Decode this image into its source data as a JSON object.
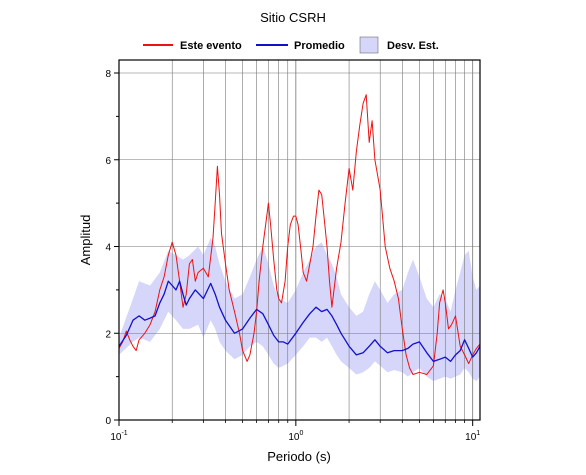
{
  "chart_data": {
    "type": "line",
    "title": "Sitio CSRH",
    "xlabel": "Periodo (s)",
    "ylabel": "Amplitud",
    "x_scale": "log",
    "xlim": [
      0.1,
      11
    ],
    "ylim": [
      0,
      8.3
    ],
    "x_ticks": [
      {
        "value": 0.1,
        "base": "10",
        "exp": "-1"
      },
      {
        "value": 1,
        "base": "10",
        "exp": "0"
      },
      {
        "value": 10,
        "base": "10",
        "exp": "1"
      }
    ],
    "y_ticks": [
      0,
      2,
      4,
      6,
      8
    ],
    "grid": true,
    "legend_position": "top",
    "series": [
      {
        "name": "Este evento",
        "color": "#ee1111",
        "points": [
          [
            0.1,
            1.65
          ],
          [
            0.105,
            1.8
          ],
          [
            0.11,
            2.05
          ],
          [
            0.115,
            1.85
          ],
          [
            0.12,
            1.7
          ],
          [
            0.125,
            1.6
          ],
          [
            0.13,
            1.85
          ],
          [
            0.14,
            2.0
          ],
          [
            0.15,
            2.2
          ],
          [
            0.16,
            2.5
          ],
          [
            0.17,
            3.0
          ],
          [
            0.18,
            3.3
          ],
          [
            0.19,
            3.8
          ],
          [
            0.2,
            4.1
          ],
          [
            0.21,
            3.8
          ],
          [
            0.22,
            3.2
          ],
          [
            0.23,
            2.6
          ],
          [
            0.24,
            2.9
          ],
          [
            0.25,
            3.6
          ],
          [
            0.26,
            3.7
          ],
          [
            0.27,
            3.2
          ],
          [
            0.28,
            3.4
          ],
          [
            0.3,
            3.5
          ],
          [
            0.32,
            3.3
          ],
          [
            0.34,
            4.2
          ],
          [
            0.35,
            5.0
          ],
          [
            0.36,
            5.85
          ],
          [
            0.37,
            5.2
          ],
          [
            0.38,
            4.3
          ],
          [
            0.4,
            3.6
          ],
          [
            0.42,
            3.0
          ],
          [
            0.45,
            2.5
          ],
          [
            0.48,
            2.0
          ],
          [
            0.5,
            1.6
          ],
          [
            0.53,
            1.35
          ],
          [
            0.55,
            1.5
          ],
          [
            0.58,
            2.0
          ],
          [
            0.6,
            2.5
          ],
          [
            0.62,
            3.2
          ],
          [
            0.65,
            4.0
          ],
          [
            0.68,
            4.6
          ],
          [
            0.7,
            5.0
          ],
          [
            0.72,
            4.5
          ],
          [
            0.75,
            3.7
          ],
          [
            0.78,
            3.0
          ],
          [
            0.8,
            2.8
          ],
          [
            0.83,
            2.7
          ],
          [
            0.87,
            3.2
          ],
          [
            0.9,
            4.0
          ],
          [
            0.93,
            4.5
          ],
          [
            0.97,
            4.7
          ],
          [
            1.0,
            4.7
          ],
          [
            1.03,
            4.5
          ],
          [
            1.07,
            3.9
          ],
          [
            1.1,
            3.4
          ],
          [
            1.15,
            3.2
          ],
          [
            1.2,
            3.6
          ],
          [
            1.25,
            4.0
          ],
          [
            1.3,
            4.7
          ],
          [
            1.35,
            5.3
          ],
          [
            1.4,
            5.2
          ],
          [
            1.45,
            4.6
          ],
          [
            1.5,
            4.0
          ],
          [
            1.55,
            3.2
          ],
          [
            1.6,
            2.6
          ],
          [
            1.7,
            3.5
          ],
          [
            1.8,
            4.1
          ],
          [
            1.9,
            5.0
          ],
          [
            2.0,
            5.8
          ],
          [
            2.1,
            5.3
          ],
          [
            2.2,
            6.2
          ],
          [
            2.3,
            6.8
          ],
          [
            2.4,
            7.3
          ],
          [
            2.5,
            7.5
          ],
          [
            2.6,
            6.4
          ],
          [
            2.7,
            6.9
          ],
          [
            2.8,
            6.0
          ],
          [
            3.0,
            5.3
          ],
          [
            3.2,
            4.0
          ],
          [
            3.4,
            3.5
          ],
          [
            3.6,
            3.2
          ],
          [
            3.8,
            2.8
          ],
          [
            4.0,
            2.1
          ],
          [
            4.2,
            1.5
          ],
          [
            4.4,
            1.2
          ],
          [
            4.6,
            1.05
          ],
          [
            5.0,
            1.1
          ],
          [
            5.5,
            1.05
          ],
          [
            6.0,
            1.25
          ],
          [
            6.3,
            2.0
          ],
          [
            6.5,
            2.7
          ],
          [
            6.8,
            3.0
          ],
          [
            7.0,
            2.7
          ],
          [
            7.3,
            2.1
          ],
          [
            7.6,
            2.2
          ],
          [
            8.0,
            2.4
          ],
          [
            8.5,
            1.7
          ],
          [
            9.0,
            1.5
          ],
          [
            9.5,
            1.3
          ],
          [
            10.0,
            1.5
          ],
          [
            10.5,
            1.65
          ],
          [
            11.0,
            1.75
          ]
        ]
      },
      {
        "name": "Promedio",
        "color": "#1111cc",
        "points": [
          [
            0.1,
            1.7
          ],
          [
            0.11,
            1.95
          ],
          [
            0.12,
            2.3
          ],
          [
            0.13,
            2.4
          ],
          [
            0.14,
            2.3
          ],
          [
            0.15,
            2.35
          ],
          [
            0.16,
            2.4
          ],
          [
            0.17,
            2.7
          ],
          [
            0.18,
            2.9
          ],
          [
            0.19,
            3.2
          ],
          [
            0.2,
            3.1
          ],
          [
            0.21,
            3.0
          ],
          [
            0.22,
            3.2
          ],
          [
            0.23,
            2.9
          ],
          [
            0.24,
            2.65
          ],
          [
            0.25,
            2.8
          ],
          [
            0.27,
            3.0
          ],
          [
            0.3,
            2.8
          ],
          [
            0.33,
            3.15
          ],
          [
            0.35,
            2.9
          ],
          [
            0.37,
            2.6
          ],
          [
            0.4,
            2.3
          ],
          [
            0.45,
            2.0
          ],
          [
            0.5,
            2.1
          ],
          [
            0.55,
            2.35
          ],
          [
            0.6,
            2.55
          ],
          [
            0.65,
            2.45
          ],
          [
            0.7,
            2.2
          ],
          [
            0.75,
            1.95
          ],
          [
            0.8,
            1.8
          ],
          [
            0.85,
            1.8
          ],
          [
            0.9,
            1.75
          ],
          [
            1.0,
            2.0
          ],
          [
            1.1,
            2.25
          ],
          [
            1.2,
            2.45
          ],
          [
            1.3,
            2.6
          ],
          [
            1.4,
            2.5
          ],
          [
            1.5,
            2.55
          ],
          [
            1.6,
            2.4
          ],
          [
            1.7,
            2.2
          ],
          [
            1.8,
            2.0
          ],
          [
            1.9,
            1.85
          ],
          [
            2.0,
            1.7
          ],
          [
            2.2,
            1.5
          ],
          [
            2.4,
            1.55
          ],
          [
            2.6,
            1.7
          ],
          [
            2.8,
            1.85
          ],
          [
            3.0,
            1.7
          ],
          [
            3.3,
            1.55
          ],
          [
            3.6,
            1.6
          ],
          [
            4.0,
            1.6
          ],
          [
            4.3,
            1.65
          ],
          [
            4.6,
            1.75
          ],
          [
            5.0,
            1.8
          ],
          [
            5.5,
            1.55
          ],
          [
            6.0,
            1.35
          ],
          [
            6.5,
            1.4
          ],
          [
            7.0,
            1.45
          ],
          [
            7.5,
            1.35
          ],
          [
            8.0,
            1.5
          ],
          [
            8.5,
            1.6
          ],
          [
            9.0,
            1.85
          ],
          [
            9.5,
            1.65
          ],
          [
            10.0,
            1.45
          ],
          [
            10.5,
            1.55
          ],
          [
            11.0,
            1.7
          ]
        ]
      },
      {
        "name": "Desv. Est.",
        "color": "#aaaaff",
        "band": [
          [
            0.1,
            1.5,
            1.9
          ],
          [
            0.12,
            1.8,
            2.8
          ],
          [
            0.13,
            1.9,
            3.2
          ],
          [
            0.15,
            1.8,
            3.1
          ],
          [
            0.17,
            2.1,
            3.4
          ],
          [
            0.19,
            2.5,
            3.9
          ],
          [
            0.21,
            2.3,
            3.8
          ],
          [
            0.23,
            2.1,
            3.7
          ],
          [
            0.25,
            2.1,
            3.8
          ],
          [
            0.28,
            2.2,
            4.0
          ],
          [
            0.3,
            1.9,
            3.8
          ],
          [
            0.33,
            2.3,
            4.2
          ],
          [
            0.35,
            2.1,
            4.0
          ],
          [
            0.37,
            1.8,
            3.6
          ],
          [
            0.4,
            1.6,
            3.2
          ],
          [
            0.45,
            1.4,
            2.8
          ],
          [
            0.5,
            1.5,
            2.9
          ],
          [
            0.55,
            1.7,
            3.3
          ],
          [
            0.6,
            1.8,
            3.7
          ],
          [
            0.65,
            1.7,
            4.0
          ],
          [
            0.7,
            1.5,
            3.6
          ],
          [
            0.75,
            1.3,
            3.1
          ],
          [
            0.8,
            1.2,
            2.8
          ],
          [
            0.9,
            1.3,
            2.7
          ],
          [
            1.0,
            1.5,
            3.0
          ],
          [
            1.1,
            1.7,
            3.4
          ],
          [
            1.2,
            1.9,
            3.7
          ],
          [
            1.3,
            1.9,
            4.0
          ],
          [
            1.4,
            1.8,
            4.1
          ],
          [
            1.5,
            1.9,
            3.8
          ],
          [
            1.6,
            1.7,
            3.6
          ],
          [
            1.7,
            1.5,
            3.3
          ],
          [
            1.8,
            1.35,
            2.9
          ],
          [
            2.0,
            1.2,
            2.6
          ],
          [
            2.2,
            1.05,
            2.4
          ],
          [
            2.4,
            1.1,
            2.5
          ],
          [
            2.6,
            1.2,
            2.9
          ],
          [
            2.8,
            1.35,
            3.2
          ],
          [
            3.0,
            1.25,
            3.0
          ],
          [
            3.3,
            1.1,
            2.7
          ],
          [
            3.6,
            1.15,
            2.9
          ],
          [
            4.0,
            1.1,
            3.0
          ],
          [
            4.3,
            1.0,
            3.4
          ],
          [
            4.6,
            1.1,
            3.7
          ],
          [
            5.0,
            1.2,
            3.3
          ],
          [
            5.5,
            1.0,
            2.8
          ],
          [
            6.0,
            0.9,
            2.6
          ],
          [
            6.5,
            0.95,
            2.9
          ],
          [
            7.0,
            1.0,
            2.8
          ],
          [
            7.5,
            0.95,
            2.5
          ],
          [
            8.0,
            1.0,
            3.0
          ],
          [
            8.5,
            1.05,
            3.4
          ],
          [
            9.0,
            1.2,
            3.8
          ],
          [
            9.5,
            1.1,
            3.9
          ],
          [
            10.0,
            0.95,
            3.3
          ],
          [
            10.5,
            0.9,
            3.0
          ],
          [
            11.0,
            1.0,
            3.1
          ]
        ]
      }
    ]
  }
}
